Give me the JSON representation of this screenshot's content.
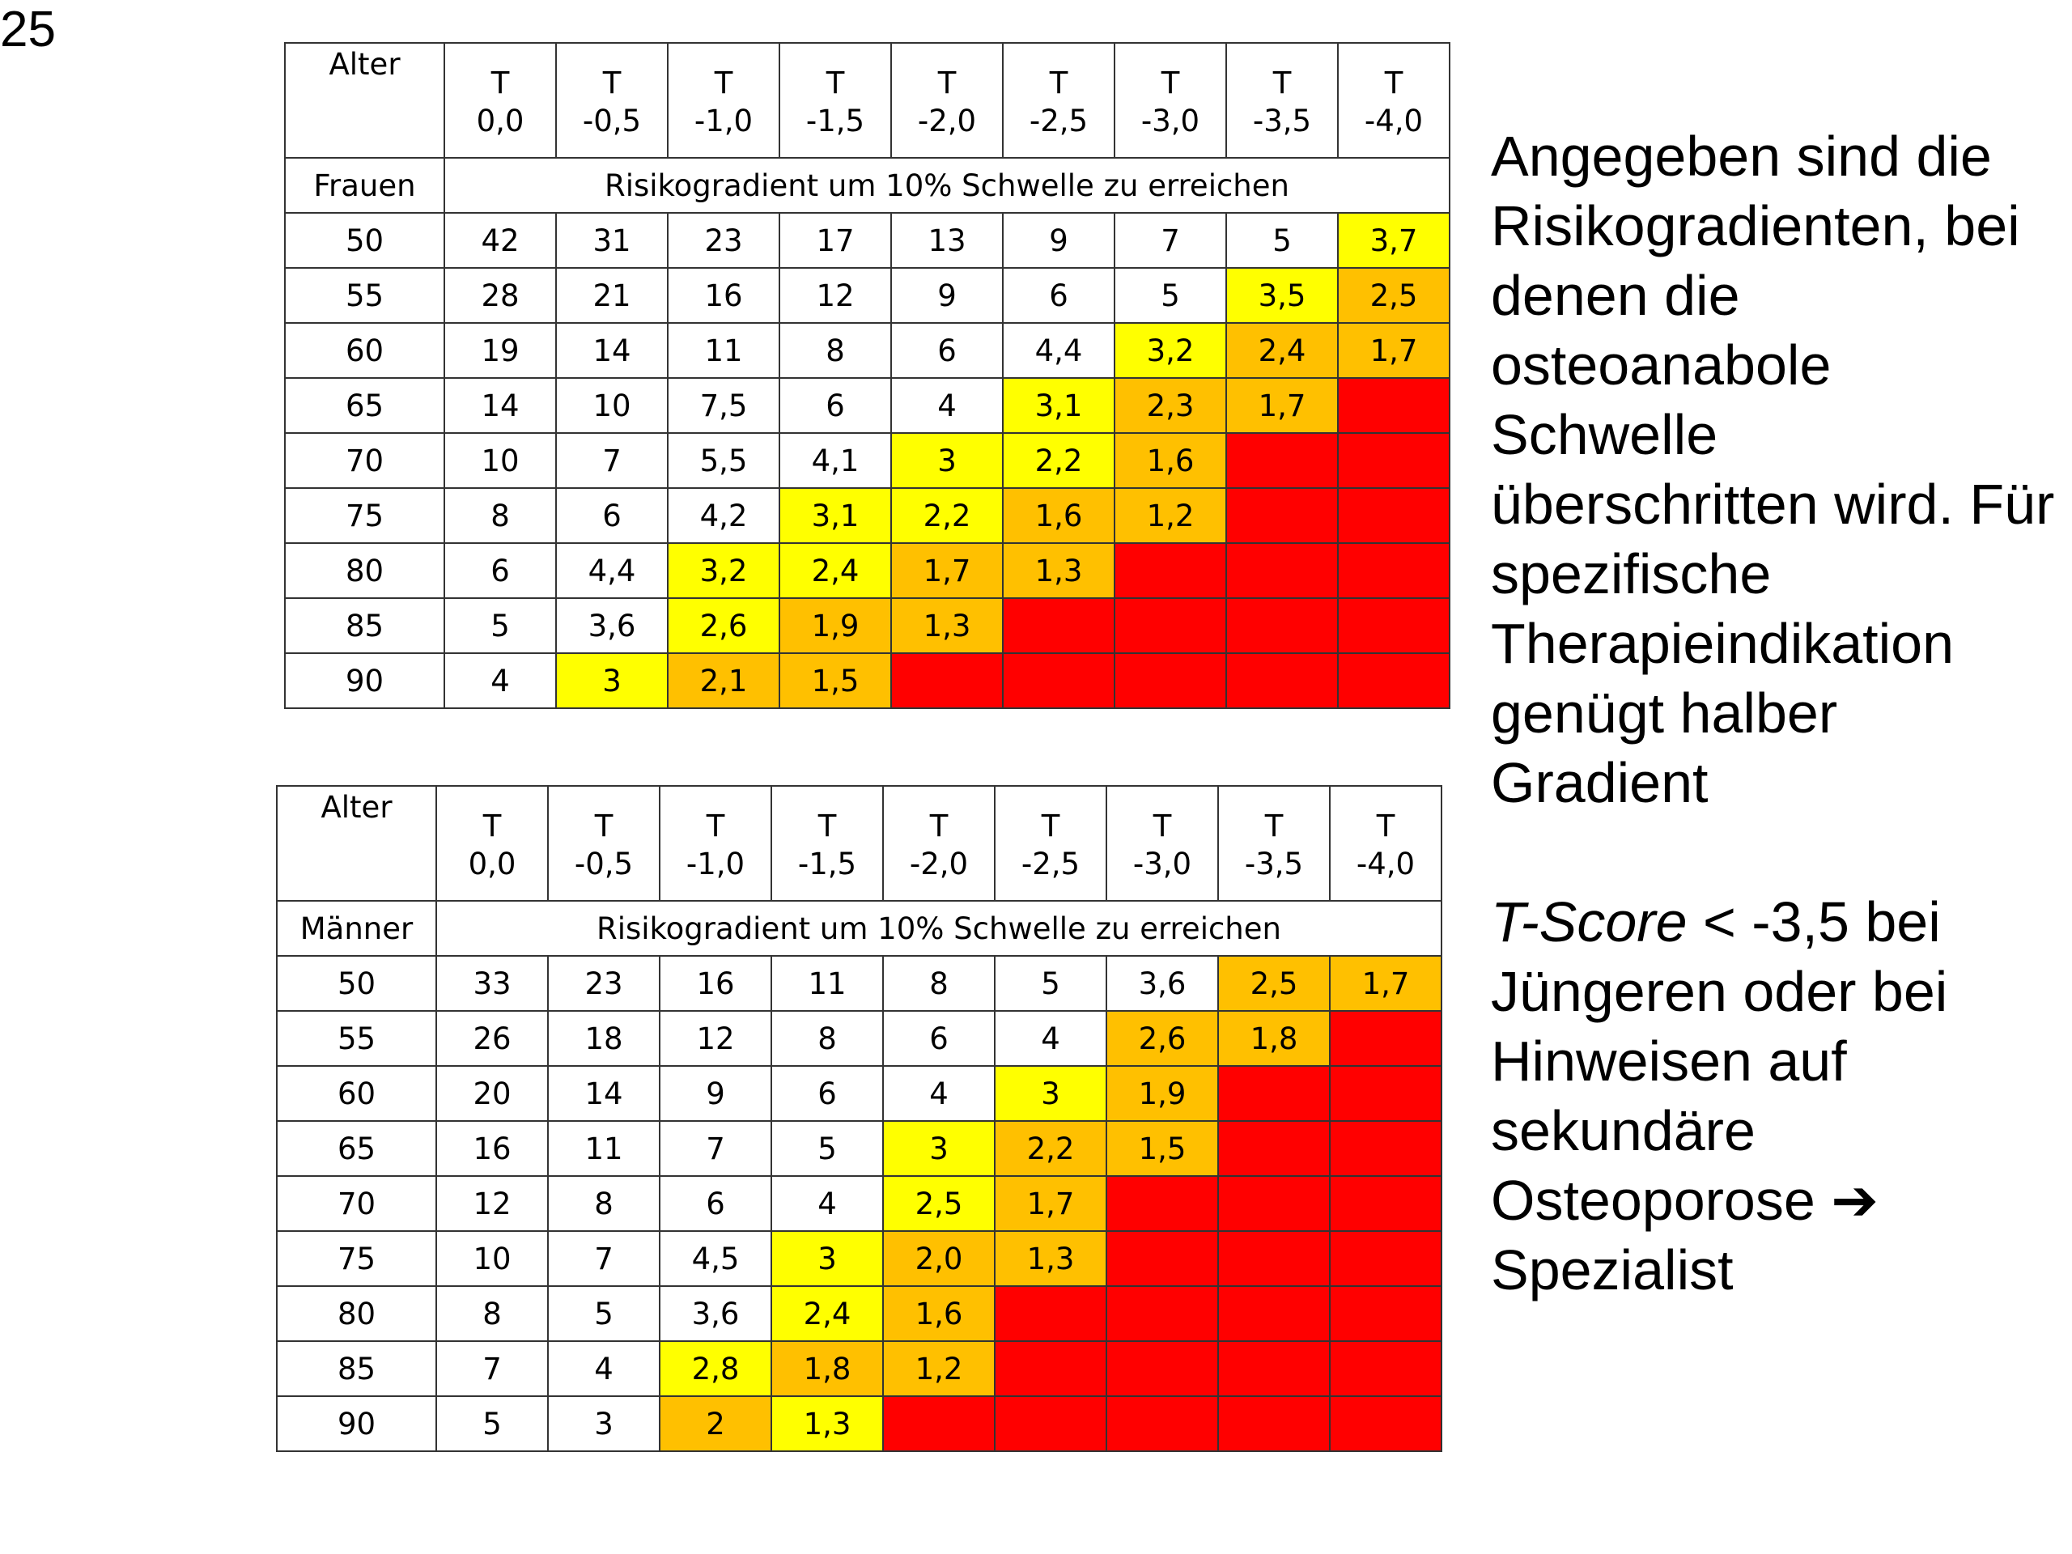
{
  "slide_number": "25",
  "colors": {
    "white": "#ffffff",
    "yellow": "#ffff00",
    "orange": "#ffc000",
    "red": "#ff0000"
  },
  "tables": {
    "women": {
      "age_header": "Alter",
      "group_label": "Frauen",
      "subheader": "Risikogradient um 10% Schwelle zu erreichen",
      "t_prefix": "T",
      "t_values": [
        "0,0",
        "-0,5",
        "-1,0",
        "-1,5",
        "-2,0",
        "-2,5",
        "-3,0",
        "-3,5",
        "-4,0"
      ],
      "rows": [
        {
          "age": "50",
          "cells": [
            [
              "42",
              "w"
            ],
            [
              "31",
              "w"
            ],
            [
              "23",
              "w"
            ],
            [
              "17",
              "w"
            ],
            [
              "13",
              "w"
            ],
            [
              "9",
              "w"
            ],
            [
              "7",
              "w"
            ],
            [
              "5",
              "w"
            ],
            [
              "3,7",
              "y"
            ]
          ]
        },
        {
          "age": "55",
          "cells": [
            [
              "28",
              "w"
            ],
            [
              "21",
              "w"
            ],
            [
              "16",
              "w"
            ],
            [
              "12",
              "w"
            ],
            [
              "9",
              "w"
            ],
            [
              "6",
              "w"
            ],
            [
              "5",
              "w"
            ],
            [
              "3,5",
              "y"
            ],
            [
              "2,5",
              "o"
            ]
          ]
        },
        {
          "age": "60",
          "cells": [
            [
              "19",
              "w"
            ],
            [
              "14",
              "w"
            ],
            [
              "11",
              "w"
            ],
            [
              "8",
              "w"
            ],
            [
              "6",
              "w"
            ],
            [
              "4,4",
              "w"
            ],
            [
              "3,2",
              "y"
            ],
            [
              "2,4",
              "o"
            ],
            [
              "1,7",
              "o"
            ]
          ]
        },
        {
          "age": "65",
          "cells": [
            [
              "14",
              "w"
            ],
            [
              "10",
              "w"
            ],
            [
              "7,5",
              "w"
            ],
            [
              "6",
              "w"
            ],
            [
              "4",
              "w"
            ],
            [
              "3,1",
              "y"
            ],
            [
              "2,3",
              "o"
            ],
            [
              "1,7",
              "o"
            ],
            [
              "",
              "r"
            ]
          ]
        },
        {
          "age": "70",
          "cells": [
            [
              "10",
              "w"
            ],
            [
              "7",
              "w"
            ],
            [
              "5,5",
              "w"
            ],
            [
              "4,1",
              "w"
            ],
            [
              "3",
              "y"
            ],
            [
              "2,2",
              "y"
            ],
            [
              "1,6",
              "o"
            ],
            [
              "",
              "r"
            ],
            [
              "",
              "r"
            ]
          ]
        },
        {
          "age": "75",
          "cells": [
            [
              "8",
              "w"
            ],
            [
              "6",
              "w"
            ],
            [
              "4,2",
              "w"
            ],
            [
              "3,1",
              "y"
            ],
            [
              "2,2",
              "y"
            ],
            [
              "1,6",
              "o"
            ],
            [
              "1,2",
              "o"
            ],
            [
              "",
              "r"
            ],
            [
              "",
              "r"
            ]
          ]
        },
        {
          "age": "80",
          "cells": [
            [
              "6",
              "w"
            ],
            [
              "4,4",
              "w"
            ],
            [
              "3,2",
              "y"
            ],
            [
              "2,4",
              "y"
            ],
            [
              "1,7",
              "o"
            ],
            [
              "1,3",
              "o"
            ],
            [
              "",
              "r"
            ],
            [
              "",
              "r"
            ],
            [
              "",
              "r"
            ]
          ]
        },
        {
          "age": "85",
          "cells": [
            [
              "5",
              "w"
            ],
            [
              "3,6",
              "w"
            ],
            [
              "2,6",
              "y"
            ],
            [
              "1,9",
              "o"
            ],
            [
              "1,3",
              "o"
            ],
            [
              "",
              "r"
            ],
            [
              "",
              "r"
            ],
            [
              "",
              "r"
            ],
            [
              "",
              "r"
            ]
          ]
        },
        {
          "age": "90",
          "cells": [
            [
              "4",
              "w"
            ],
            [
              "3",
              "y"
            ],
            [
              "2,1",
              "o"
            ],
            [
              "1,5",
              "o"
            ],
            [
              "",
              "r"
            ],
            [
              "",
              "r"
            ],
            [
              "",
              "r"
            ],
            [
              "",
              "r"
            ],
            [
              "",
              "r"
            ]
          ]
        }
      ]
    },
    "men": {
      "age_header": "Alter",
      "group_label": "Männer",
      "subheader": "Risikogradient um 10% Schwelle zu erreichen",
      "t_prefix": "T",
      "t_values": [
        "0,0",
        "-0,5",
        "-1,0",
        "-1,5",
        "-2,0",
        "-2,5",
        "-3,0",
        "-3,5",
        "-4,0"
      ],
      "rows": [
        {
          "age": "50",
          "cells": [
            [
              "33",
              "w"
            ],
            [
              "23",
              "w"
            ],
            [
              "16",
              "w"
            ],
            [
              "11",
              "w"
            ],
            [
              "8",
              "w"
            ],
            [
              "5",
              "w"
            ],
            [
              "3,6",
              "w"
            ],
            [
              "2,5",
              "o"
            ],
            [
              "1,7",
              "o"
            ]
          ]
        },
        {
          "age": "55",
          "cells": [
            [
              "26",
              "w"
            ],
            [
              "18",
              "w"
            ],
            [
              "12",
              "w"
            ],
            [
              "8",
              "w"
            ],
            [
              "6",
              "w"
            ],
            [
              "4",
              "w"
            ],
            [
              "2,6",
              "o"
            ],
            [
              "1,8",
              "o"
            ],
            [
              "",
              "r"
            ]
          ]
        },
        {
          "age": "60",
          "cells": [
            [
              "20",
              "w"
            ],
            [
              "14",
              "w"
            ],
            [
              "9",
              "w"
            ],
            [
              "6",
              "w"
            ],
            [
              "4",
              "w"
            ],
            [
              "3",
              "y"
            ],
            [
              "1,9",
              "o"
            ],
            [
              "",
              "r"
            ],
            [
              "",
              "r"
            ]
          ]
        },
        {
          "age": "65",
          "cells": [
            [
              "16",
              "w"
            ],
            [
              "11",
              "w"
            ],
            [
              "7",
              "w"
            ],
            [
              "5",
              "w"
            ],
            [
              "3",
              "y"
            ],
            [
              "2,2",
              "o"
            ],
            [
              "1,5",
              "o"
            ],
            [
              "",
              "r"
            ],
            [
              "",
              "r"
            ]
          ]
        },
        {
          "age": "70",
          "cells": [
            [
              "12",
              "w"
            ],
            [
              "8",
              "w"
            ],
            [
              "6",
              "w"
            ],
            [
              "4",
              "w"
            ],
            [
              "2,5",
              "y"
            ],
            [
              "1,7",
              "o"
            ],
            [
              "",
              "r"
            ],
            [
              "",
              "r"
            ],
            [
              "",
              "r"
            ]
          ]
        },
        {
          "age": "75",
          "cells": [
            [
              "10",
              "w"
            ],
            [
              "7",
              "w"
            ],
            [
              "4,5",
              "w"
            ],
            [
              "3",
              "y"
            ],
            [
              "2,0",
              "o"
            ],
            [
              "1,3",
              "o"
            ],
            [
              "",
              "r"
            ],
            [
              "",
              "r"
            ],
            [
              "",
              "r"
            ]
          ]
        },
        {
          "age": "80",
          "cells": [
            [
              "8",
              "w"
            ],
            [
              "5",
              "w"
            ],
            [
              "3,6",
              "w"
            ],
            [
              "2,4",
              "y"
            ],
            [
              "1,6",
              "o"
            ],
            [
              "",
              "r"
            ],
            [
              "",
              "r"
            ],
            [
              "",
              "r"
            ],
            [
              "",
              "r"
            ]
          ]
        },
        {
          "age": "85",
          "cells": [
            [
              "7",
              "w"
            ],
            [
              "4",
              "w"
            ],
            [
              "2,8",
              "y"
            ],
            [
              "1,8",
              "o"
            ],
            [
              "1,2",
              "o"
            ],
            [
              "",
              "r"
            ],
            [
              "",
              "r"
            ],
            [
              "",
              "r"
            ],
            [
              "",
              "r"
            ]
          ]
        },
        {
          "age": "90",
          "cells": [
            [
              "5",
              "w"
            ],
            [
              "3",
              "w"
            ],
            [
              "2",
              "o"
            ],
            [
              "1,3",
              "y"
            ],
            [
              "",
              "r"
            ],
            [
              "",
              "r"
            ],
            [
              "",
              "r"
            ],
            [
              "",
              "r"
            ],
            [
              "",
              "r"
            ]
          ]
        }
      ]
    }
  },
  "side_text": {
    "paragraph1": "Angegeben sind die Risikogradienten, bei denen die osteoanabole Schwelle überschritten wird. Für spezifische Therapieindikation genügt halber Gradient",
    "paragraph2_italic": "T-Score",
    "paragraph2_rest": " < -3,5 bei Jüngeren oder bei Hinweisen auf sekundäre Osteoporose ➔ Spezialist"
  }
}
